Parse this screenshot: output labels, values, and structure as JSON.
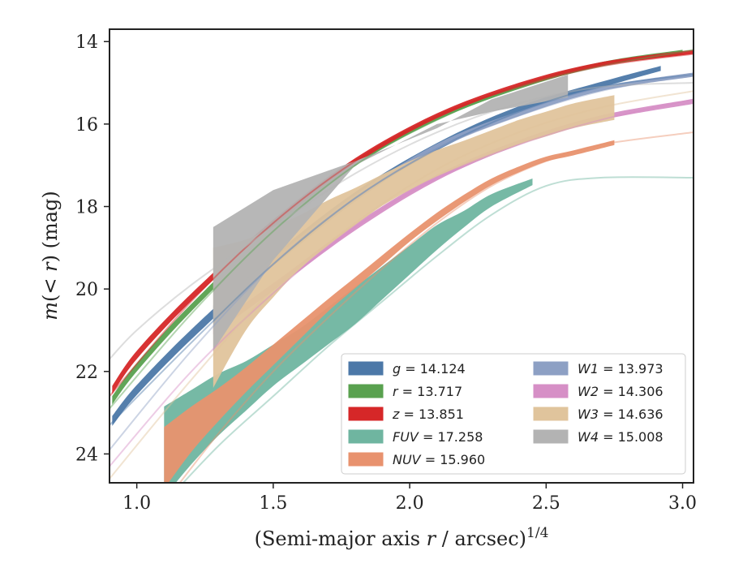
{
  "chart_data": {
    "type": "line",
    "title": "",
    "xlabel": "(Semi-major axis r / arcsec)",
    "xlabel_parts": {
      "prefix": "(Semi-major axis ",
      "var": "r",
      "suffix": " / arcsec)",
      "power": "1/4"
    },
    "ylabel": "m(< r) (mag)",
    "ylabel_parts": {
      "m": "m",
      "open": "(",
      "lt": "< ",
      "r": "r",
      "close": ")",
      "unit": " (mag)"
    },
    "xlim": [
      0.9,
      3.04
    ],
    "ylim": [
      24.7,
      13.7
    ],
    "y_inverted": true,
    "x_ticks": [
      1.0,
      1.5,
      2.0,
      2.5,
      3.0
    ],
    "x_tick_labels": [
      "1.0",
      "1.5",
      "2.0",
      "2.5",
      "3.0"
    ],
    "y_ticks": [
      14,
      16,
      18,
      20,
      22,
      24
    ],
    "y_tick_labels": [
      "14",
      "16",
      "18",
      "20",
      "22",
      "24"
    ],
    "grid": false,
    "legend_position": "lower-right",
    "legend_columns": 2,
    "series": [
      {
        "name": "g = 14.124",
        "label_var": "g",
        "label_val": " = 14.124",
        "color": "#4c78a8",
        "ext": {
          "x": [
            0.9,
            1.2,
            1.5,
            1.8,
            2.1,
            2.4,
            2.7,
            3.04
          ],
          "y": [
            23.3,
            21.3,
            19.4,
            17.8,
            16.6,
            15.7,
            15.1,
            14.8
          ]
        },
        "band": {
          "x": [
            0.91,
            1.0,
            1.2,
            1.5,
            1.8,
            2.1,
            2.4,
            2.7,
            2.92
          ],
          "y": [
            23.2,
            22.45,
            21.1,
            19.3,
            17.75,
            16.55,
            15.65,
            15.05,
            14.65
          ],
          "w": [
            0.12,
            0.12,
            0.12,
            0.11,
            0.1,
            0.09,
            0.08,
            0.07,
            0.06
          ]
        }
      },
      {
        "name": "r = 13.717",
        "label_var": "r",
        "label_val": " = 13.717",
        "color": "#59a14f",
        "ext": {
          "x": [
            0.9,
            1.2,
            1.5,
            1.8,
            2.1,
            2.4,
            2.7,
            3.04
          ],
          "y": [
            22.9,
            20.6,
            18.6,
            17.0,
            15.9,
            15.1,
            14.6,
            14.2
          ]
        },
        "band": {
          "x": [
            0.91,
            1.0,
            1.2,
            1.5,
            1.8,
            2.1,
            2.4,
            2.7,
            3.0
          ],
          "y": [
            22.7,
            21.9,
            20.45,
            18.55,
            16.95,
            15.85,
            15.1,
            14.55,
            14.25
          ],
          "w": [
            0.1,
            0.1,
            0.09,
            0.08,
            0.07,
            0.06,
            0.05,
            0.05,
            0.05
          ]
        }
      },
      {
        "name": "z = 13.851",
        "label_var": "z",
        "label_val": " = 13.851",
        "color": "#d62728",
        "ext": {
          "x": [
            0.9,
            1.2,
            1.5,
            1.8,
            2.1,
            2.4,
            2.7,
            3.04
          ],
          "y": [
            22.6,
            20.3,
            18.4,
            16.9,
            15.8,
            15.1,
            14.6,
            14.3
          ]
        },
        "band": {
          "x": [
            0.91,
            1.0,
            1.2,
            1.5,
            1.8,
            2.1,
            2.4,
            2.7,
            3.04
          ],
          "y": [
            22.45,
            21.6,
            20.2,
            18.4,
            16.9,
            15.8,
            15.05,
            14.55,
            14.25
          ],
          "w": [
            0.1,
            0.1,
            0.09,
            0.08,
            0.07,
            0.06,
            0.05,
            0.05,
            0.05
          ]
        }
      },
      {
        "name": "FUV = 17.258",
        "label_var": "FUV",
        "label_val": " = 17.258",
        "color": "#6fb5a0",
        "ext": {
          "x": [
            1.1,
            1.3,
            1.5,
            1.7,
            1.9,
            2.1,
            2.3,
            2.5,
            2.7,
            3.04
          ],
          "y": [
            25.2,
            23.8,
            22.6,
            21.4,
            20.3,
            19.2,
            18.2,
            17.5,
            17.3,
            17.3
          ]
        },
        "band": {
          "x": [
            1.1,
            1.2,
            1.3,
            1.4,
            1.5,
            1.6,
            1.7,
            1.8,
            1.9,
            2.0,
            2.1,
            2.2,
            2.3,
            2.45
          ],
          "y": [
            23.95,
            23.35,
            22.8,
            22.35,
            21.85,
            21.4,
            20.9,
            20.4,
            19.85,
            19.3,
            18.75,
            18.3,
            17.85,
            17.4
          ],
          "w": [
            1.1,
            0.9,
            0.75,
            0.6,
            0.5,
            0.45,
            0.45,
            0.45,
            0.4,
            0.35,
            0.3,
            0.2,
            0.15,
            0.08
          ]
        }
      },
      {
        "name": "NUV = 15.960",
        "label_var": "NUV",
        "label_val": " = 15.960",
        "color": "#e8926e",
        "ext": {
          "x": [
            1.1,
            1.3,
            1.5,
            1.7,
            1.9,
            2.1,
            2.3,
            2.5,
            2.7,
            3.04
          ],
          "y": [
            25.2,
            23.5,
            22.0,
            20.7,
            19.5,
            18.4,
            17.5,
            16.9,
            16.5,
            16.2
          ]
        },
        "band": {
          "x": [
            1.1,
            1.2,
            1.3,
            1.4,
            1.5,
            1.6,
            1.7,
            1.8,
            1.9,
            2.0,
            2.1,
            2.2,
            2.3,
            2.4,
            2.5,
            2.6,
            2.75
          ],
          "y": [
            24.1,
            23.4,
            22.8,
            22.2,
            21.6,
            21.0,
            20.4,
            19.85,
            19.3,
            18.75,
            18.25,
            17.8,
            17.4,
            17.1,
            16.85,
            16.7,
            16.45
          ],
          "w": [
            0.75,
            0.55,
            0.4,
            0.3,
            0.25,
            0.2,
            0.15,
            0.13,
            0.12,
            0.1,
            0.1,
            0.09,
            0.08,
            0.07,
            0.06,
            0.06,
            0.06
          ]
        }
      },
      {
        "name": "W1 = 13.973",
        "label_var": "W1",
        "label_val": " = 13.973",
        "color": "#8da0c4",
        "ext": {
          "x": [
            0.9,
            1.2,
            1.5,
            1.8,
            2.1,
            2.4,
            2.7,
            3.04
          ],
          "y": [
            23.9,
            21.5,
            19.4,
            17.8,
            16.6,
            15.8,
            15.2,
            14.8
          ]
        },
        "band": {
          "x": [
            1.28,
            1.5,
            1.8,
            2.1,
            2.4,
            2.7,
            3.04
          ],
          "y": [
            20.5,
            19.35,
            17.8,
            16.55,
            15.75,
            15.15,
            14.8
          ],
          "w": [
            0.1,
            0.09,
            0.08,
            0.07,
            0.06,
            0.05,
            0.05
          ]
        }
      },
      {
        "name": "W2 = 14.306",
        "label_var": "W2",
        "label_val": " = 14.306",
        "color": "#d68fc6",
        "ext": {
          "x": [
            0.9,
            1.2,
            1.5,
            1.8,
            2.1,
            2.4,
            2.7,
            3.04
          ],
          "y": [
            24.3,
            22.0,
            20.1,
            18.5,
            17.3,
            16.5,
            15.9,
            15.4
          ]
        },
        "band": {
          "x": [
            1.28,
            1.5,
            1.8,
            2.1,
            2.4,
            2.7,
            3.04
          ],
          "y": [
            21.0,
            19.95,
            18.5,
            17.3,
            16.45,
            15.85,
            15.45
          ],
          "w": [
            0.1,
            0.09,
            0.08,
            0.07,
            0.06,
            0.06,
            0.06
          ]
        }
      },
      {
        "name": "W3 = 14.636",
        "label_var": "W3",
        "label_val": " = 14.636",
        "color": "#e0c49c",
        "ext": {
          "x": [
            0.9,
            1.2,
            1.5,
            1.8,
            2.1,
            2.4,
            2.7,
            3.04
          ],
          "y": [
            24.6,
            22.2,
            20.0,
            18.4,
            17.1,
            16.2,
            15.6,
            15.2
          ]
        },
        "band": {
          "x": [
            1.28,
            1.4,
            1.5,
            1.6,
            1.7,
            1.8,
            1.9,
            2.0,
            2.1,
            2.2,
            2.3,
            2.4,
            2.5,
            2.6,
            2.75
          ],
          "y": [
            20.7,
            19.9,
            19.35,
            18.85,
            18.4,
            18.0,
            17.6,
            17.25,
            16.95,
            16.7,
            16.45,
            16.2,
            16.0,
            15.8,
            15.6
          ],
          "w": [
            1.7,
            1.1,
            0.85,
            0.65,
            0.55,
            0.45,
            0.38,
            0.35,
            0.32,
            0.3,
            0.3,
            0.3,
            0.3,
            0.3,
            0.3
          ]
        }
      },
      {
        "name": "W4 = 15.008",
        "label_var": "W4",
        "label_val": " = 15.008",
        "color": "#b3b3b3",
        "ext": {
          "x": [
            0.9,
            1.0,
            1.2,
            1.5,
            1.8,
            2.1,
            2.4,
            2.7,
            3.04
          ],
          "y": [
            21.7,
            21.0,
            19.9,
            18.5,
            17.2,
            16.2,
            15.5,
            15.1,
            15.0
          ]
        },
        "band_poly": {
          "x": [
            1.28,
            1.5,
            1.8,
            2.1,
            2.3,
            2.58,
            2.58,
            2.3,
            2.1,
            1.8,
            1.5,
            1.28
          ],
          "y": [
            18.5,
            17.6,
            16.9,
            16.1,
            15.4,
            14.8,
            15.35,
            15.7,
            16.0,
            17.0,
            19.3,
            21.5
          ]
        }
      }
    ]
  }
}
